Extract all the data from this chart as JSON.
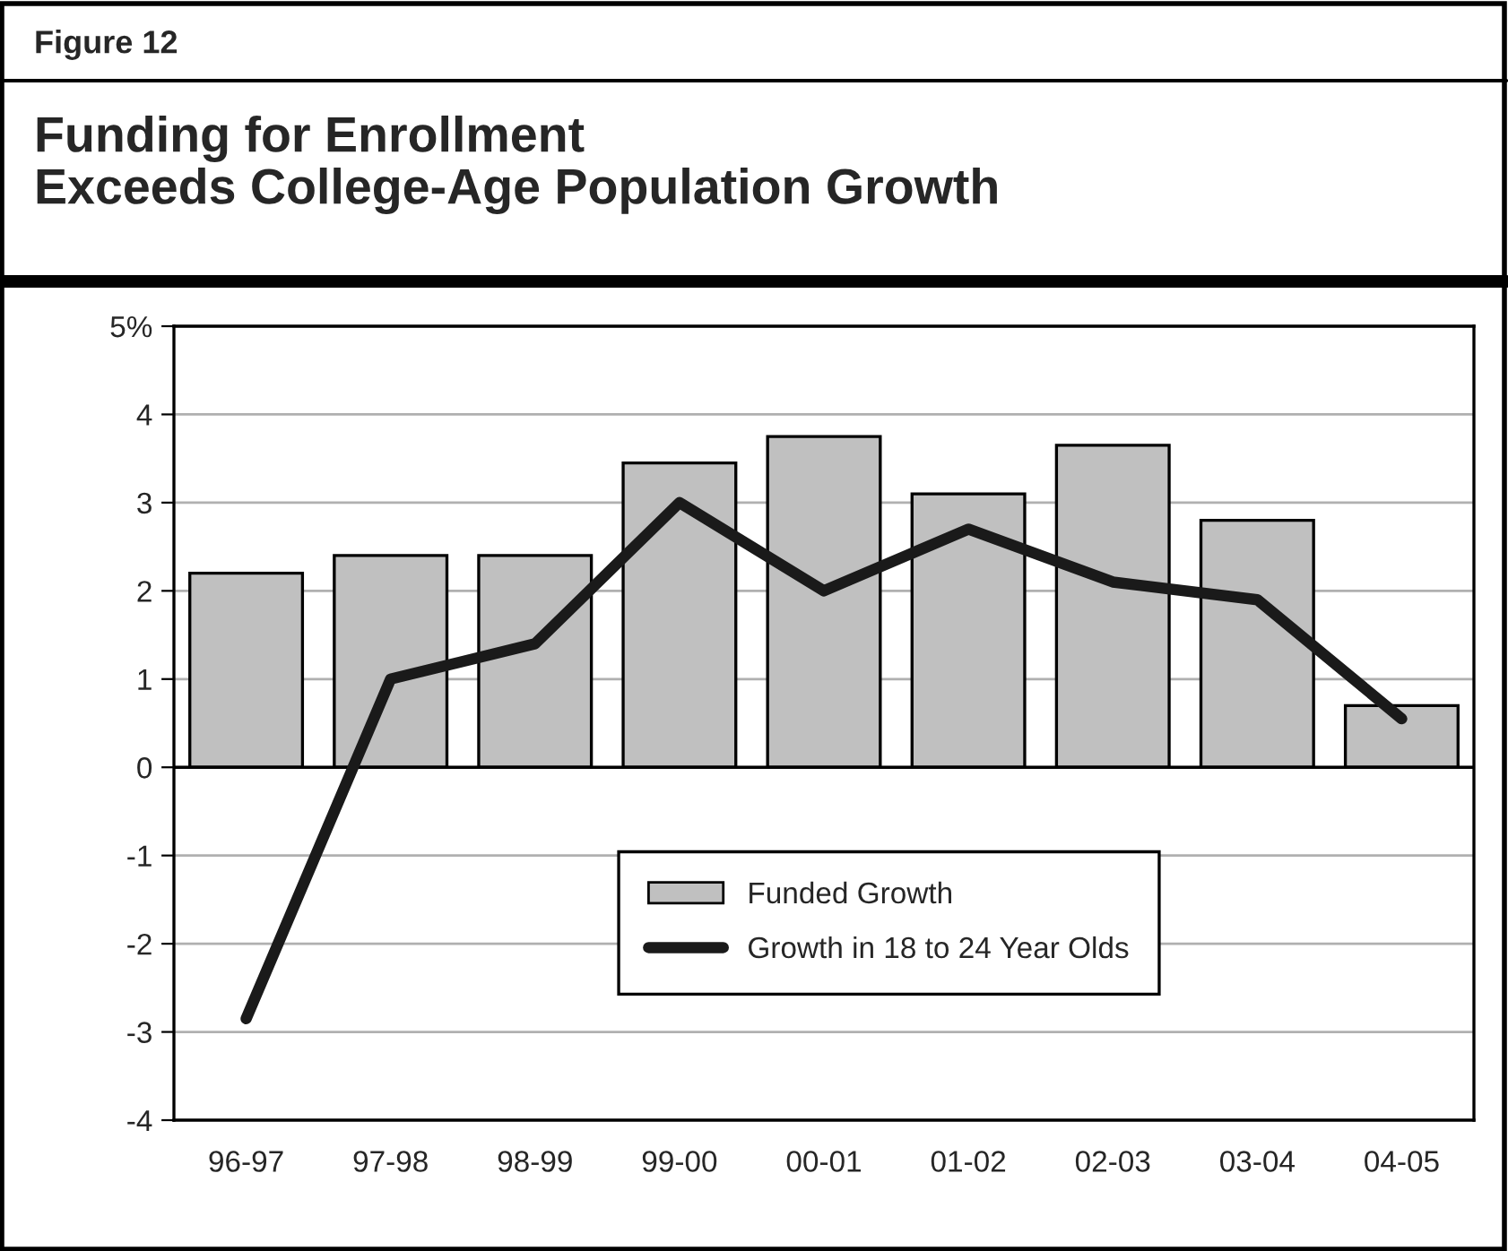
{
  "chart_data": {
    "type": "bar",
    "title": "Funding for Enrollment\nExceeds College-Age Population Growth",
    "annotations": [
      "Figure 12"
    ],
    "categories": [
      "96-97",
      "97-98",
      "98-99",
      "99-00",
      "00-01",
      "01-02",
      "02-03",
      "03-04",
      "04-05"
    ],
    "series": [
      {
        "name": "Funded Growth",
        "color": "#c0c0c0",
        "values": [
          2.2,
          2.4,
          2.4,
          3.45,
          3.75,
          3.1,
          3.65,
          2.8,
          0.7
        ]
      },
      {
        "name": "Growth in 18 to 24 Year Olds",
        "type": "line",
        "color": "#1a1a1a",
        "values": [
          -2.85,
          1.0,
          1.4,
          3.0,
          2.0,
          2.7,
          2.1,
          1.9,
          0.55
        ]
      }
    ],
    "ylim": [
      -4,
      5
    ],
    "yticks": [
      -4,
      -3,
      -2,
      -1,
      0,
      1,
      2,
      3,
      4,
      {
        "value": 5,
        "label": "5%"
      }
    ],
    "grid": "y",
    "legend": "bottom",
    "marker": "none",
    "line_style": "solid"
  }
}
